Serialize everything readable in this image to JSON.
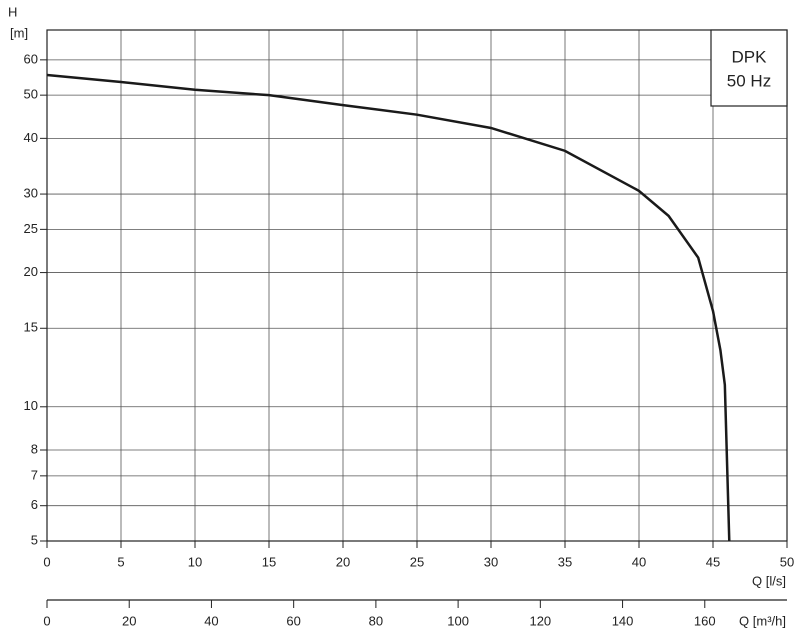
{
  "chart_data": {
    "type": "line",
    "y_label": "H",
    "y_unit": "[m]",
    "x_label": "Q [l/s]",
    "x2_label": "Q [m³/h]",
    "annotation": [
      "DPK",
      "50 Hz"
    ],
    "x": [
      0,
      5,
      10,
      15,
      20,
      25,
      30,
      35,
      40,
      42,
      44,
      45,
      45.5,
      45.8,
      46.1
    ],
    "series": [
      {
        "color": "#1a1a1a",
        "values": [
          55.5,
          53.5,
          51.4,
          50,
          47.5,
          45.2,
          42.2,
          37.5,
          30.5,
          26.8,
          21.6,
          16.4,
          13.4,
          11.2,
          5
        ]
      }
    ],
    "xlim": [
      0,
      50
    ],
    "xticks": [
      0,
      5,
      10,
      15,
      20,
      25,
      30,
      35,
      40,
      45,
      50
    ],
    "x2lim": [
      0,
      180
    ],
    "x2ticks": [
      0,
      20,
      40,
      60,
      80,
      100,
      120,
      140,
      160
    ],
    "ylim": [
      5,
      70
    ],
    "yticks": [
      5,
      6,
      7,
      8,
      10,
      15,
      20,
      25,
      30,
      40,
      50,
      60
    ],
    "log_y": true,
    "grid": true
  }
}
